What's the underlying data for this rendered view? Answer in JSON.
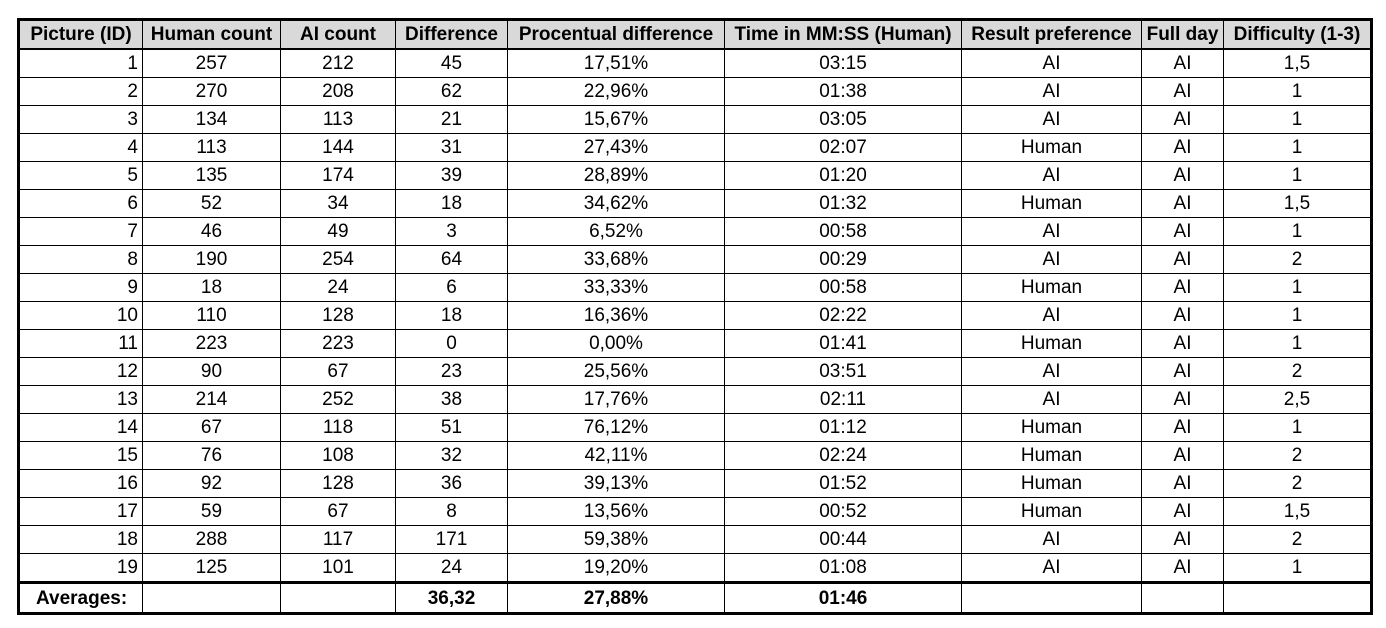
{
  "table": {
    "headers": [
      "Picture (ID)",
      "Human count",
      "AI count",
      "Difference",
      "Procentual difference",
      "Time  in MM:SS (Human)",
      "Result preference",
      "Full day",
      "Difficulty (1-3)"
    ],
    "rows": [
      [
        "1",
        "257",
        "212",
        "45",
        "17,51%",
        "03:15",
        "AI",
        "AI",
        "1,5"
      ],
      [
        "2",
        "270",
        "208",
        "62",
        "22,96%",
        "01:38",
        "AI",
        "AI",
        "1"
      ],
      [
        "3",
        "134",
        "113",
        "21",
        "15,67%",
        "03:05",
        "AI",
        "AI",
        "1"
      ],
      [
        "4",
        "113",
        "144",
        "31",
        "27,43%",
        "02:07",
        "Human",
        "AI",
        "1"
      ],
      [
        "5",
        "135",
        "174",
        "39",
        "28,89%",
        "01:20",
        "AI",
        "AI",
        "1"
      ],
      [
        "6",
        "52",
        "34",
        "18",
        "34,62%",
        "01:32",
        "Human",
        "AI",
        "1,5"
      ],
      [
        "7",
        "46",
        "49",
        "3",
        "6,52%",
        "00:58",
        "AI",
        "AI",
        "1"
      ],
      [
        "8",
        "190",
        "254",
        "64",
        "33,68%",
        "00:29",
        "AI",
        "AI",
        "2"
      ],
      [
        "9",
        "18",
        "24",
        "6",
        "33,33%",
        "00:58",
        "Human",
        "AI",
        "1"
      ],
      [
        "10",
        "110",
        "128",
        "18",
        "16,36%",
        "02:22",
        "AI",
        "AI",
        "1"
      ],
      [
        "11",
        "223",
        "223",
        "0",
        "0,00%",
        "01:41",
        "Human",
        "AI",
        "1"
      ],
      [
        "12",
        "90",
        "67",
        "23",
        "25,56%",
        "03:51",
        "AI",
        "AI",
        "2"
      ],
      [
        "13",
        "214",
        "252",
        "38",
        "17,76%",
        "02:11",
        "AI",
        "AI",
        "2,5"
      ],
      [
        "14",
        "67",
        "118",
        "51",
        "76,12%",
        "01:12",
        "Human",
        "AI",
        "1"
      ],
      [
        "15",
        "76",
        "108",
        "32",
        "42,11%",
        "02:24",
        "Human",
        "AI",
        "2"
      ],
      [
        "16",
        "92",
        "128",
        "36",
        "39,13%",
        "01:52",
        "Human",
        "AI",
        "2"
      ],
      [
        "17",
        "59",
        "67",
        "8",
        "13,56%",
        "00:52",
        "Human",
        "AI",
        "1,5"
      ],
      [
        "18",
        "288",
        "117",
        "171",
        "59,38%",
        "00:44",
        "AI",
        "AI",
        "2"
      ],
      [
        "19",
        "125",
        "101",
        "24",
        "19,20%",
        "01:08",
        "AI",
        "AI",
        "1"
      ]
    ],
    "averages": {
      "label": "Averages:",
      "difference": "36,32",
      "procentual_difference": "27,88%",
      "time": "01:46"
    }
  },
  "colors": {
    "header_background": "#d9d9d9",
    "border": "#000000",
    "text": "#000000"
  }
}
